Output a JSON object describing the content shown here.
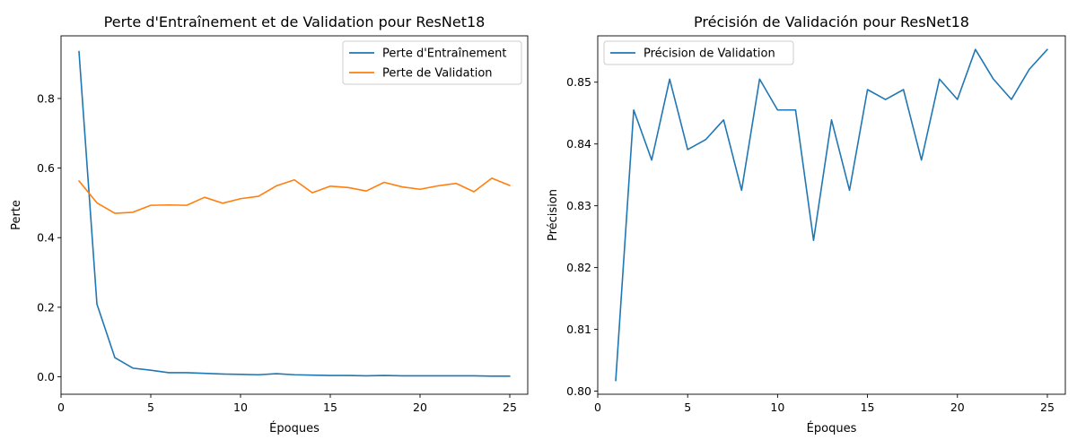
{
  "chart_data": [
    {
      "type": "line",
      "title": "Perte d'Entraînement et de Validation pour ResNet18",
      "xlabel": "Époques",
      "ylabel": "Perte",
      "xlim": [
        0,
        26
      ],
      "ylim": [
        -0.05,
        0.98
      ],
      "xticks": [
        0,
        5,
        10,
        15,
        20,
        25
      ],
      "yticks": [
        0.0,
        0.2,
        0.4,
        0.6,
        0.8
      ],
      "ytick_labels": [
        "0.0",
        "0.2",
        "0.4",
        "0.6",
        "0.8"
      ],
      "grid": false,
      "legend_position": "top-right",
      "x": [
        1,
        2,
        3,
        4,
        5,
        6,
        7,
        8,
        9,
        10,
        11,
        12,
        13,
        14,
        15,
        16,
        17,
        18,
        19,
        20,
        21,
        22,
        23,
        24,
        25
      ],
      "series": [
        {
          "name": "Perte d'Entraînement",
          "color": "#1f77b4",
          "values": [
            0.935,
            0.209,
            0.055,
            0.025,
            0.019,
            0.012,
            0.012,
            0.01,
            0.008,
            0.007,
            0.006,
            0.009,
            0.006,
            0.005,
            0.004,
            0.004,
            0.003,
            0.004,
            0.003,
            0.003,
            0.003,
            0.003,
            0.003,
            0.002,
            0.002
          ]
        },
        {
          "name": "Perte de Validation",
          "color": "#ff7f0e",
          "values": [
            0.563,
            0.5,
            0.47,
            0.473,
            0.493,
            0.494,
            0.493,
            0.516,
            0.499,
            0.512,
            0.519,
            0.549,
            0.566,
            0.529,
            0.548,
            0.544,
            0.534,
            0.559,
            0.546,
            0.539,
            0.549,
            0.556,
            0.532,
            0.571,
            0.55
          ]
        }
      ]
    },
    {
      "type": "line",
      "title": "Précisión de Validación pour ResNet18",
      "xlabel": "Époques",
      "ylabel": "Précision",
      "xlim": [
        0,
        26
      ],
      "ylim": [
        0.7995,
        0.8575
      ],
      "xticks": [
        0,
        5,
        10,
        15,
        20,
        25
      ],
      "yticks": [
        0.8,
        0.81,
        0.82,
        0.83,
        0.84,
        0.85
      ],
      "ytick_labels": [
        "0.80",
        "0.81",
        "0.82",
        "0.83",
        "0.84",
        "0.85"
      ],
      "grid": false,
      "legend_position": "top-left",
      "x": [
        1,
        2,
        3,
        4,
        5,
        6,
        7,
        8,
        9,
        10,
        11,
        12,
        13,
        14,
        15,
        16,
        17,
        18,
        19,
        20,
        21,
        22,
        23,
        24,
        25
      ],
      "series": [
        {
          "name": "Précision de Validation",
          "color": "#1f77b4",
          "values": [
            0.8017,
            0.8455,
            0.8374,
            0.8505,
            0.8391,
            0.8407,
            0.8439,
            0.8325,
            0.8505,
            0.8455,
            0.8455,
            0.8244,
            0.8439,
            0.8325,
            0.8488,
            0.8472,
            0.8488,
            0.8374,
            0.8505,
            0.8472,
            0.8553,
            0.8505,
            0.8472,
            0.8521,
            0.8553
          ]
        }
      ]
    }
  ]
}
